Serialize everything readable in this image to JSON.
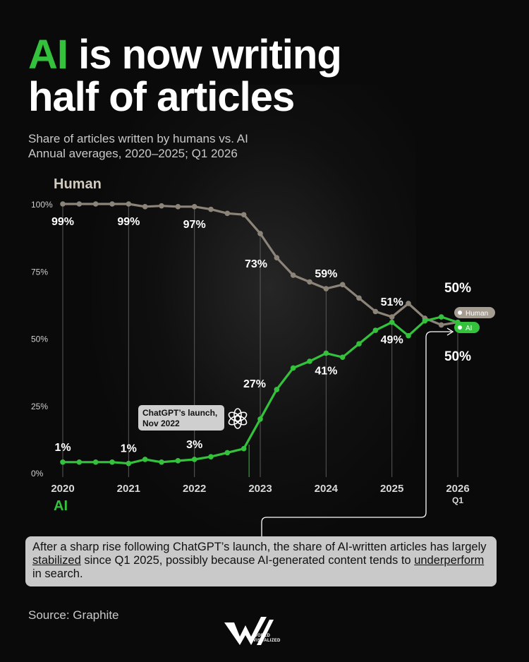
{
  "title": {
    "accent": "AI",
    "rest": " is now writing",
    "line2": "half of articles"
  },
  "subtitle": {
    "line1": "Share of articles written by humans vs. AI",
    "line2": "Annual averages, 2020–2025; Q1 2026"
  },
  "series_titles": {
    "human": "Human",
    "ai": "AI"
  },
  "colors": {
    "human": "#8c8479",
    "ai": "#34c23d",
    "background": "#0a0a0a",
    "grid": "#5a5a5a"
  },
  "annotation": {
    "line1": "ChatGPT’s launch,",
    "line2": "Nov 2022",
    "icon": "openai-logo-icon"
  },
  "end_tags": {
    "human": "Human",
    "ai": "AI"
  },
  "callout": {
    "part1": "After a sharp rise following ChatGPT’s launch, the share of AI-written articles has largely ",
    "underline1": "stabilized",
    "part2": " since Q1 2025, possibly because AI-generated content tends to ",
    "underline2": "underperform",
    "part3": " in search."
  },
  "source": "Source: Graphite",
  "logo": {
    "line1": "WORLD",
    "line2": "VISUALIZED"
  },
  "chart_data": {
    "type": "line",
    "ylim": [
      0,
      100
    ],
    "xlim": [
      2020,
      2026
    ],
    "y_ticks": [
      "0%",
      "25%",
      "50%",
      "75%",
      "100%"
    ],
    "y_tick_values": [
      0,
      25,
      50,
      75,
      100
    ],
    "x_ticks": [
      {
        "value": 2020,
        "label": "2020"
      },
      {
        "value": 2021,
        "label": "2021"
      },
      {
        "value": 2022,
        "label": "2022"
      },
      {
        "value": 2023,
        "label": "2023"
      },
      {
        "value": 2024,
        "label": "2024"
      },
      {
        "value": 2025,
        "label": "2025"
      },
      {
        "value": 2026,
        "label": "2026",
        "sublabel": "Q1"
      }
    ],
    "series": [
      {
        "name": "Human",
        "x": [
          2020,
          2020.25,
          2020.5,
          2020.75,
          2021,
          2021.25,
          2021.5,
          2021.75,
          2022,
          2022.25,
          2022.5,
          2022.75,
          2023,
          2023.25,
          2023.5,
          2023.75,
          2024,
          2024.25,
          2024.5,
          2024.75,
          2025,
          2025.25,
          2025.5,
          2025.75,
          2026
        ],
        "y": [
          100,
          100,
          100,
          100,
          100,
          99,
          99.3,
          99,
          99,
          98,
          96.5,
          96,
          89,
          80,
          73.5,
          71,
          68.5,
          70,
          65,
          60,
          58,
          63,
          57.5,
          55,
          56
        ]
      },
      {
        "name": "AI",
        "x": [
          2020,
          2020.25,
          2020.5,
          2020.75,
          2021,
          2021.25,
          2021.5,
          2021.75,
          2022,
          2022.25,
          2022.5,
          2022.75,
          2023,
          2023.25,
          2023.5,
          2023.75,
          2024,
          2024.25,
          2024.5,
          2024.75,
          2025,
          2025.25,
          2025.5,
          2025.75,
          2026
        ],
        "y": [
          4,
          4,
          4,
          4,
          3.5,
          5,
          4,
          4.5,
          5,
          6,
          7.5,
          9,
          20,
          31,
          39,
          41.5,
          44.5,
          43,
          48,
          53,
          56,
          51,
          56.5,
          58,
          56
        ]
      }
    ],
    "labels": [
      {
        "series": "Human",
        "x": 2020,
        "text": "99%",
        "pos": "below"
      },
      {
        "series": "Human",
        "x": 2021,
        "text": "99%",
        "pos": "below"
      },
      {
        "series": "Human",
        "x": 2022,
        "text": "97%",
        "pos": "below"
      },
      {
        "series": "Human",
        "x": 2023,
        "text": "73%",
        "pos": "below"
      },
      {
        "series": "Human",
        "x": 2024,
        "text": "59%",
        "pos": "above"
      },
      {
        "series": "Human",
        "x": 2025,
        "text": "51%",
        "pos": "above"
      },
      {
        "series": "Human",
        "x": 2026,
        "text": "50%",
        "pos": "above"
      },
      {
        "series": "AI",
        "x": 2020,
        "text": "1%",
        "pos": "above"
      },
      {
        "series": "AI",
        "x": 2021,
        "text": "1%",
        "pos": "above"
      },
      {
        "series": "AI",
        "x": 2022,
        "text": "3%",
        "pos": "above"
      },
      {
        "series": "AI",
        "x": 2023,
        "text": "27%",
        "pos": "above"
      },
      {
        "series": "AI",
        "x": 2024,
        "text": "41%",
        "pos": "below"
      },
      {
        "series": "AI",
        "x": 2025,
        "text": "49%",
        "pos": "below"
      },
      {
        "series": "AI",
        "x": 2026,
        "text": "50%",
        "pos": "below"
      }
    ],
    "annotation_x": 2022.83,
    "grid": false
  }
}
